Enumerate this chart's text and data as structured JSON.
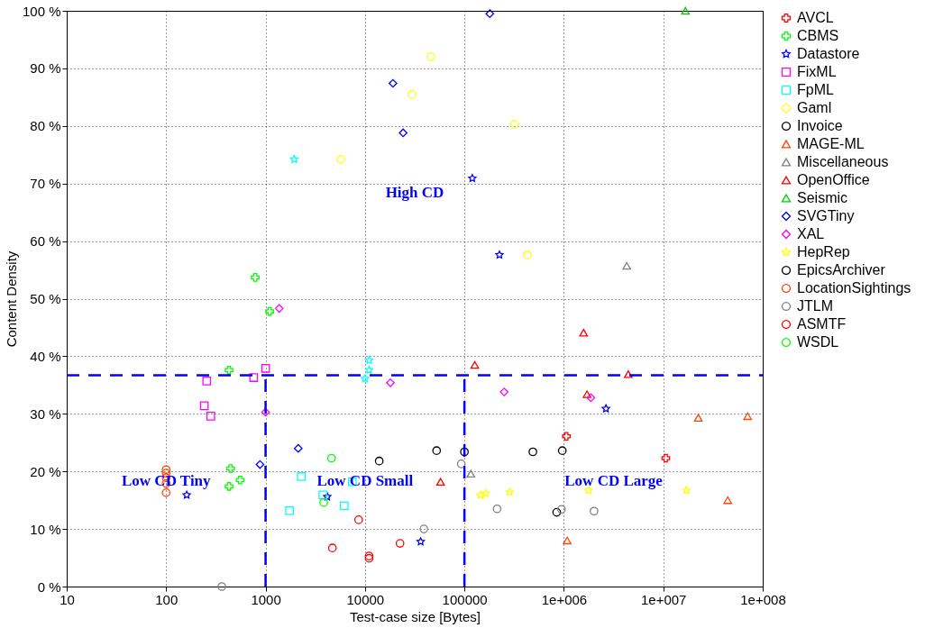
{
  "chart_data": {
    "type": "scatter",
    "xlabel": "Test-case size [Bytes]",
    "ylabel": "Content Density",
    "log": "x",
    "grid": true,
    "legend": "right",
    "xlim": [
      10,
      100000000
    ],
    "xticks": [
      10,
      100,
      1000,
      10000,
      100000,
      {
        "value": 1000000,
        "label": "1e+006"
      },
      {
        "value": 10000000,
        "label": "1e+007"
      },
      {
        "value": 100000000,
        "label": "1e+008"
      }
    ],
    "ylim": [
      0,
      100
    ],
    "yticks": [
      {
        "value": 0,
        "label": "0 %"
      },
      {
        "value": 10,
        "label": "10 %"
      },
      {
        "value": 20,
        "label": "20 %"
      },
      {
        "value": 30,
        "label": "30 %"
      },
      {
        "value": 40,
        "label": "40 %"
      },
      {
        "value": 50,
        "label": "50 %"
      },
      {
        "value": 60,
        "label": "60 %"
      },
      {
        "value": 70,
        "label": "70 %"
      },
      {
        "value": 80,
        "label": "80 %"
      },
      {
        "value": 90,
        "label": "90 %"
      },
      {
        "value": 100,
        "label": "100 %"
      }
    ],
    "ref_lines": [
      {
        "axis": "y",
        "value": 36.7,
        "color": "#0000ff",
        "line_style": "dashed"
      },
      {
        "axis": "x",
        "value": 1000,
        "color": "#0000ff",
        "line_style": "dashed"
      },
      {
        "axis": "x",
        "value": 100000,
        "color": "#0000ff",
        "line_style": "dashed"
      }
    ],
    "annotations": [
      "High CD",
      "Low CD Tiny",
      "Low CD Small",
      "Low CD Large"
    ],
    "series": [
      {
        "name": "AVCL",
        "color": "#ff0000",
        "marker": "cross",
        "x": [
          1060000,
          10600000
        ],
        "values": [
          26.1,
          22.3
        ]
      },
      {
        "name": "CBMS",
        "color": "#00ff00",
        "marker": "cross",
        "x": [
          787,
          1100,
          429,
          445,
          429,
          555
        ],
        "values": [
          53.7,
          47.8,
          37.6,
          20.5,
          17.4,
          18.5
        ]
      },
      {
        "name": "Datastore",
        "color": "#0000ff",
        "marker": "star",
        "x": [
          161,
          4170,
          36300,
          120000,
          225000,
          2650000
        ],
        "values": [
          15.9,
          15.6,
          7.8,
          70.9,
          57.6,
          30.9
        ]
      },
      {
        "name": "FixML",
        "color": "#ff00ff",
        "marker": "square",
        "x": [
          256,
          759,
          1000,
          242,
          281
        ],
        "values": [
          35.7,
          36.3,
          37.9,
          31.4,
          29.6
        ]
      },
      {
        "name": "FpML",
        "color": "#00ffff",
        "marker": "square",
        "x": [
          1740,
          2290,
          3770,
          6190,
          7450
        ],
        "values": [
          13.2,
          19.1,
          15.9,
          14.0,
          18.2
        ]
      },
      {
        "name": "Gaml",
        "color": "#ffff00",
        "marker": "circle",
        "x": [
          29600,
          5750,
          319000,
          429000,
          46100
        ],
        "values": [
          85.5,
          74.2,
          80.3,
          57.6,
          92.0
        ]
      },
      {
        "name": "Invoice",
        "color": "#000000",
        "marker": "circle",
        "x": [
          13900,
          52500,
          100000,
          488000,
          964000
        ],
        "values": [
          21.8,
          23.6,
          23.4,
          23.4,
          23.6
        ]
      },
      {
        "name": "MAGE-ML",
        "color": "#ff4500",
        "marker": "triangle",
        "x": [
          22500000,
          70500000,
          44500000,
          1080000
        ],
        "values": [
          29.3,
          29.6,
          15.0,
          8.0
        ]
      },
      {
        "name": "Miscellaneous",
        "color": "#808080",
        "marker": "triangle",
        "x": [
          116000,
          4290000
        ],
        "values": [
          19.6,
          55.7
        ]
      },
      {
        "name": "OpenOffice",
        "color": "#ff0000",
        "marker": "triangle",
        "x": [
          57500,
          127000,
          1580000,
          4450000,
          1710000
        ],
        "values": [
          18.2,
          38.5,
          44.1,
          36.9,
          33.4
        ]
      },
      {
        "name": "Seismic",
        "color": "#00cc00",
        "marker": "triangle",
        "x": [
          16700000
        ],
        "values": [
          100
        ]
      },
      {
        "name": "SVGTiny",
        "color": "#0000ff",
        "marker": "diamond",
        "x": [
          19100,
          24200,
          180000,
          879,
          2130
        ],
        "values": [
          87.4,
          78.8,
          99.5,
          21.2,
          24.0
        ]
      },
      {
        "name": "XAL",
        "color": "#ff00ff",
        "marker": "diamond",
        "x": [
          1370,
          1000,
          18000,
          251000,
          1870000
        ],
        "values": [
          48.3,
          30.3,
          35.4,
          33.8,
          32.8
        ]
      },
      {
        "color": "#00ffff",
        "marker": "star",
        "x": [
          1940,
          11000,
          11000,
          10000
        ],
        "values": [
          74.2,
          39.3,
          37.6,
          36.1
        ]
      },
      {
        "name": "HepRep",
        "color": "#ffff00",
        "marker": "star",
        "x": [
          145000,
          164000,
          286000,
          1770000,
          17100000
        ],
        "values": [
          15.9,
          16.2,
          16.4,
          16.7,
          16.7
        ]
      },
      {
        "name": "EpicsArchiver",
        "color": "#000000",
        "marker": "circle",
        "x": [
          847000
        ],
        "values": [
          12.9
        ]
      },
      {
        "name": "LocationSightings",
        "color": "#ff4500",
        "marker": "circle",
        "x": [
          100,
          100,
          100,
          100,
          100
        ],
        "values": [
          20.3,
          19.7,
          18.9,
          17.9,
          16.3
        ]
      },
      {
        "name": "JTLM",
        "color": "#808080",
        "marker": "circle",
        "x": [
          363,
          92900,
          39100,
          213000,
          946000,
          2010000
        ],
        "values": [
          0,
          21.3,
          10.0,
          13.5,
          13.4,
          13.1
        ]
      },
      {
        "name": "ASMTF",
        "color": "#ff0000",
        "marker": "circle",
        "x": [
          8630,
          4700,
          11000,
          11000,
          22500
        ],
        "values": [
          11.6,
          6.7,
          5.3,
          4.9,
          7.5
        ]
      },
      {
        "name": "WSDL",
        "color": "#00ff00",
        "marker": "circle",
        "x": [
          4610,
          3840
        ],
        "values": [
          22.3,
          14.6
        ]
      }
    ]
  }
}
